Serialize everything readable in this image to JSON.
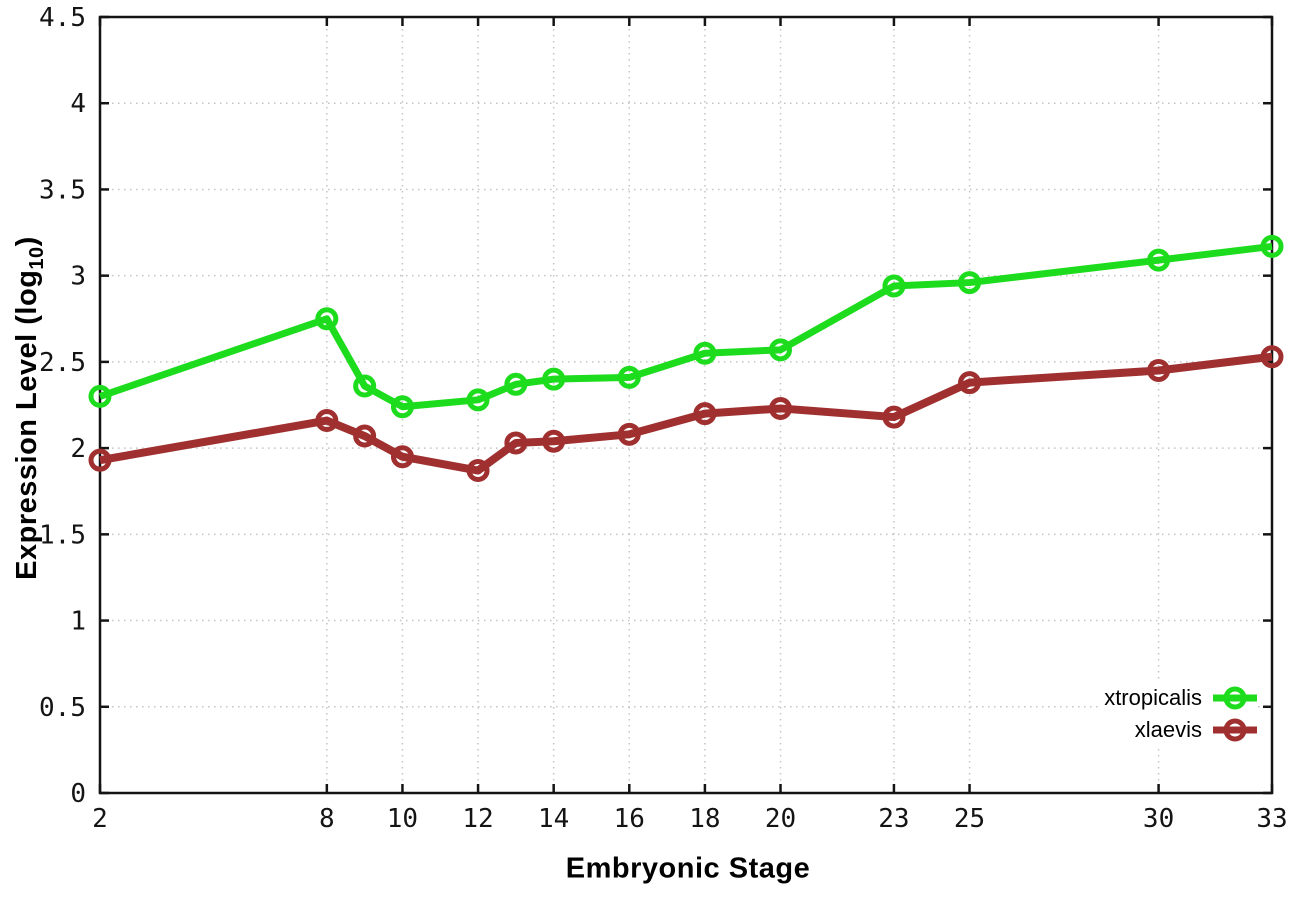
{
  "chart_data": {
    "type": "line",
    "title": "",
    "xlabel": "Embryonic Stage",
    "ylabel": "Expression Level (log10)",
    "ylabel_parts": {
      "main": "Expression Level (log",
      "sub": "10",
      "close": ")"
    },
    "xlim": [
      2,
      33
    ],
    "ylim": [
      0,
      4.5
    ],
    "grid": true,
    "legend_position": "inside-bottom-right",
    "x": [
      2,
      8,
      9,
      10,
      12,
      13,
      14,
      16,
      18,
      20,
      23,
      25,
      30,
      33
    ],
    "xtick_values": [
      2,
      8,
      10,
      12,
      14,
      16,
      18,
      20,
      23,
      25,
      30,
      33
    ],
    "xtick_labels": [
      "2",
      "8",
      "10",
      "12",
      "14",
      "16",
      "18",
      "20",
      "23",
      "25",
      "30",
      "33"
    ],
    "ytick_values": [
      0,
      0.5,
      1,
      1.5,
      2,
      2.5,
      3,
      3.5,
      4,
      4.5
    ],
    "ytick_labels": [
      "0",
      "0.5",
      "1",
      "1.5",
      "2",
      "2.5",
      "3",
      "3.5",
      "4",
      "4.5"
    ],
    "series": [
      {
        "name": "xtropicalis",
        "color": "#1ddc1d",
        "marker": "open-circle",
        "line_width": 7,
        "values": [
          2.3,
          2.75,
          2.36,
          2.24,
          2.28,
          2.37,
          2.4,
          2.41,
          2.55,
          2.57,
          2.94,
          2.96,
          3.09,
          3.17
        ]
      },
      {
        "name": "xlaevis",
        "color": "#a03030",
        "marker": "open-circle",
        "line_width": 8,
        "values": [
          1.93,
          2.16,
          2.07,
          1.95,
          1.87,
          2.03,
          2.04,
          2.08,
          2.2,
          2.23,
          2.18,
          2.38,
          2.45,
          2.53
        ]
      }
    ],
    "axis_color": "#141414",
    "grid_color": "#c4c4c4",
    "background": "#ffffff"
  }
}
